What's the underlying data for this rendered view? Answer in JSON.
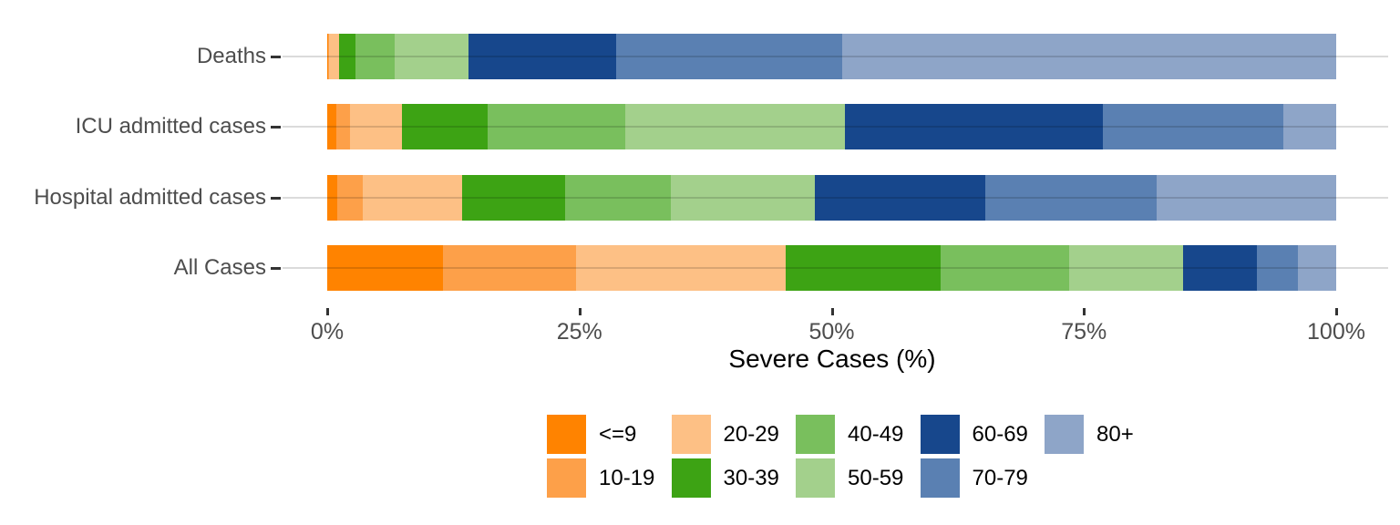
{
  "chart_data": {
    "type": "bar",
    "orientation": "horizontal",
    "stacked": true,
    "title": "",
    "xlabel": "Severe Cases (%)",
    "ylabel": "",
    "xlim": [
      0,
      100
    ],
    "x_ticks": [
      {
        "value": 0,
        "label": "0%"
      },
      {
        "value": 25,
        "label": "25%"
      },
      {
        "value": 50,
        "label": "50%"
      },
      {
        "value": 75,
        "label": "75%"
      },
      {
        "value": 100,
        "label": "100%"
      }
    ],
    "categories": [
      "Deaths",
      "ICU admitted cases",
      "Hospital admitted cases",
      "All Cases"
    ],
    "series": [
      {
        "name": "<=9",
        "color": "#FF8300",
        "values": [
          0.1,
          0.9,
          1.0,
          11.5
        ]
      },
      {
        "name": "10-19",
        "color": "#FDA049",
        "values": [
          0.1,
          1.4,
          2.5,
          13.2
        ]
      },
      {
        "name": "20-29",
        "color": "#FDC085",
        "values": [
          1.0,
          5.1,
          9.9,
          20.7
        ]
      },
      {
        "name": "30-39",
        "color": "#3DA314",
        "values": [
          1.6,
          8.5,
          10.2,
          15.4
        ]
      },
      {
        "name": "40-49",
        "color": "#79BF5D",
        "values": [
          3.9,
          13.6,
          10.5,
          12.7
        ]
      },
      {
        "name": "50-59",
        "color": "#A3D08C",
        "values": [
          7.3,
          21.8,
          14.2,
          11.3
        ]
      },
      {
        "name": "60-69",
        "color": "#17478C",
        "values": [
          14.6,
          25.6,
          16.9,
          7.3
        ]
      },
      {
        "name": "70-79",
        "color": "#5A80B2",
        "values": [
          22.4,
          17.9,
          17.0,
          4.1
        ]
      },
      {
        "name": "80+",
        "color": "#8EA5C8",
        "values": [
          49.0,
          5.2,
          17.8,
          3.8
        ]
      }
    ],
    "legend_position": "bottom",
    "grid": "horizontal-only",
    "gridline_color": "#D9D9D9",
    "tick_color": "#333333",
    "axis_text_color": "#4d4d4d"
  }
}
